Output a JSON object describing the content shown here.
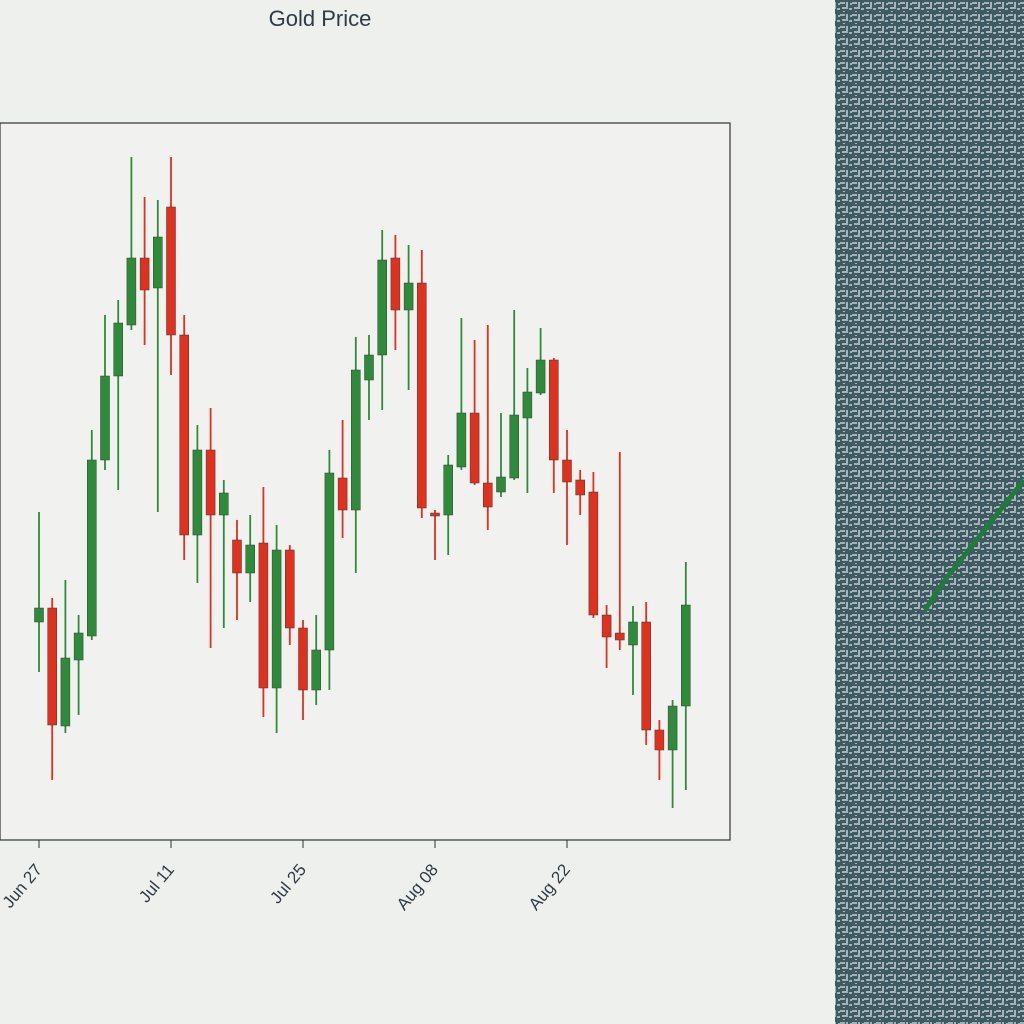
{
  "chart_data": {
    "type": "candlestick",
    "title": "Gold Price",
    "categories": [
      "Jun 27",
      null,
      null,
      null,
      null,
      null,
      null,
      null,
      null,
      null,
      "Jul 11",
      null,
      null,
      null,
      null,
      null,
      null,
      null,
      null,
      null,
      "Jul 25",
      null,
      null,
      null,
      null,
      null,
      null,
      null,
      null,
      null,
      "Aug 08",
      null,
      null,
      null,
      null,
      null,
      null,
      null,
      null,
      null,
      "Aug 22",
      null,
      null,
      null,
      null,
      null,
      null,
      null,
      null,
      null
    ],
    "open": [
      218,
      232,
      114,
      180,
      204,
      380,
      464,
      515,
      582,
      552,
      633,
      505,
      305,
      390,
      325,
      300,
      267,
      297,
      152,
      290,
      212,
      150,
      190,
      362,
      330,
      460,
      485,
      582,
      530,
      557,
      327,
      325,
      373,
      427,
      357,
      348,
      362,
      422,
      447,
      480,
      380,
      360,
      348,
      225,
      207,
      195,
      218,
      110,
      90,
      134
    ],
    "high": [
      328,
      242,
      260,
      225,
      410,
      525,
      540,
      683,
      643,
      640,
      683,
      525,
      415,
      432,
      360,
      320,
      325,
      353,
      315,
      295,
      220,
      225,
      390,
      420,
      503,
      505,
      610,
      605,
      595,
      590,
      330,
      385,
      522,
      500,
      515,
      427,
      530,
      472,
      512,
      482,
      410,
      370,
      368,
      235,
      388,
      234,
      238,
      120,
      140,
      278
    ],
    "low": [
      168,
      60,
      107,
      125,
      200,
      370,
      350,
      510,
      495,
      328,
      465,
      280,
      257,
      192,
      212,
      220,
      238,
      123,
      107,
      195,
      120,
      135,
      150,
      302,
      267,
      420,
      430,
      490,
      450,
      322,
      280,
      285,
      370,
      355,
      310,
      343,
      360,
      347,
      445,
      347,
      295,
      325,
      222,
      172,
      190,
      145,
      95,
      60,
      32,
      50
    ],
    "close": [
      232,
      115,
      182,
      207,
      380,
      464,
      517,
      582,
      550,
      603,
      505,
      305,
      390,
      325,
      347,
      267,
      295,
      152,
      290,
      212,
      150,
      190,
      367,
      330,
      470,
      485,
      580,
      530,
      557,
      332,
      324,
      375,
      427,
      357,
      333,
      363,
      425,
      448,
      480,
      380,
      358,
      345,
      225,
      203,
      200,
      218,
      110,
      90,
      134,
      235
    ],
    "up_color": "#2e8b3a",
    "down_color": "#e0301e",
    "ylim": [
      0,
      717
    ]
  }
}
